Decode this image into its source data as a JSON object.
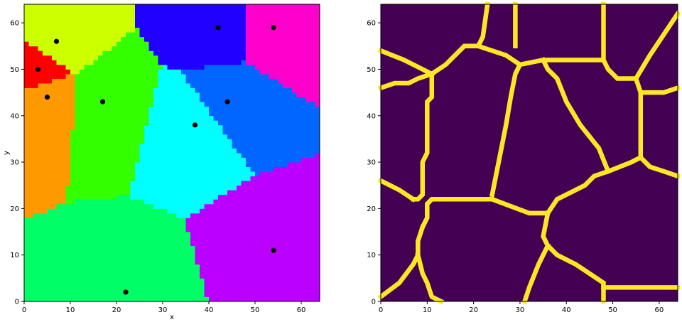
{
  "chart_data": [
    {
      "type": "heatmap",
      "subtype": "voronoi-label-map-with-seed-points",
      "xlabel": "x",
      "ylabel": "y",
      "xlim": [
        0,
        64
      ],
      "ylim": [
        0,
        64
      ],
      "xticks": [
        "0",
        "10",
        "20",
        "30",
        "40",
        "50",
        "60"
      ],
      "yticks": [
        "0",
        "10",
        "20",
        "30",
        "40",
        "50",
        "60"
      ],
      "grid": false,
      "seed_points": [
        {
          "x": 7,
          "y": 56,
          "region_color": "#ccff00"
        },
        {
          "x": 3,
          "y": 50,
          "region_color": "#ff0000"
        },
        {
          "x": 5,
          "y": 44,
          "region_color": "#ff9900"
        },
        {
          "x": 17,
          "y": 43,
          "region_color": "#33ff00"
        },
        {
          "x": 42,
          "y": 59,
          "region_color": "#2200ff"
        },
        {
          "x": 54,
          "y": 59,
          "region_color": "#ff00cc"
        },
        {
          "x": 44,
          "y": 43,
          "region_color": "#0066ff"
        },
        {
          "x": 37,
          "y": 38,
          "region_color": "#00ffff"
        },
        {
          "x": 54,
          "y": 11,
          "region_color": "#bb00ff"
        },
        {
          "x": 22,
          "y": 2,
          "region_color": "#00ff66"
        }
      ],
      "point_color": "#000000"
    },
    {
      "type": "heatmap",
      "subtype": "voronoi-boundary-mask",
      "xlim": [
        0,
        64
      ],
      "ylim": [
        0,
        64
      ],
      "xticks": [
        "0",
        "10",
        "20",
        "30",
        "40",
        "50",
        "60"
      ],
      "yticks": [
        "0",
        "10",
        "20",
        "30",
        "40",
        "50",
        "60"
      ],
      "grid": false,
      "colormap": {
        "background": "#440154",
        "boundary": "#fde725"
      },
      "boundaries": [
        [
          [
            0,
            54
          ],
          [
            5,
            52
          ],
          [
            11,
            49
          ],
          [
            14,
            51
          ],
          [
            18,
            55
          ],
          [
            21,
            55
          ],
          [
            22,
            57
          ],
          [
            23,
            64
          ]
        ],
        [
          [
            21,
            55
          ],
          [
            27,
            53
          ],
          [
            30,
            51
          ],
          [
            35,
            52
          ],
          [
            48,
            52
          ],
          [
            48,
            64
          ]
        ],
        [
          [
            29,
            55
          ],
          [
            29,
            64
          ]
        ],
        [
          [
            48,
            52
          ],
          [
            49,
            50
          ],
          [
            51,
            48
          ],
          [
            55,
            48
          ],
          [
            58,
            53
          ],
          [
            64,
            62
          ]
        ],
        [
          [
            55,
            48
          ],
          [
            56,
            45
          ],
          [
            61,
            45
          ],
          [
            64,
            46
          ]
        ],
        [
          [
            56,
            45
          ],
          [
            56,
            31
          ],
          [
            58,
            29
          ],
          [
            61,
            28
          ],
          [
            64,
            27
          ]
        ],
        [
          [
            56,
            31
          ],
          [
            54,
            30
          ],
          [
            49,
            28
          ],
          [
            46,
            27
          ],
          [
            44,
            25
          ],
          [
            38,
            22
          ],
          [
            36,
            19
          ],
          [
            32,
            19
          ],
          [
            24,
            22
          ],
          [
            11,
            22
          ],
          [
            10,
            21
          ],
          [
            10,
            18
          ],
          [
            9,
            16
          ]
        ],
        [
          [
            36,
            19
          ],
          [
            35,
            14
          ],
          [
            36,
            12
          ],
          [
            38,
            10
          ],
          [
            42,
            8
          ],
          [
            48,
            4
          ],
          [
            48,
            0
          ]
        ],
        [
          [
            48,
            3
          ],
          [
            64,
            3
          ]
        ],
        [
          [
            36,
            12
          ],
          [
            34,
            8
          ],
          [
            32,
            3
          ],
          [
            31,
            0
          ]
        ],
        [
          [
            11,
            49
          ],
          [
            11,
            44
          ],
          [
            10,
            43
          ],
          [
            10,
            32
          ],
          [
            9,
            30
          ],
          [
            9,
            23
          ],
          [
            8,
            22
          ],
          [
            7,
            22
          ]
        ],
        [
          [
            7,
            22
          ],
          [
            4,
            24
          ],
          [
            0,
            26
          ]
        ],
        [
          [
            9,
            16
          ],
          [
            8,
            13
          ],
          [
            8,
            10
          ],
          [
            7,
            8
          ],
          [
            4,
            4
          ],
          [
            0,
            1
          ]
        ],
        [
          [
            8,
            10
          ],
          [
            9,
            6
          ],
          [
            10,
            4
          ],
          [
            11,
            1
          ],
          [
            13,
            0
          ]
        ],
        [
          [
            0,
            46
          ],
          [
            3,
            47
          ],
          [
            6,
            47
          ],
          [
            8,
            48
          ],
          [
            11,
            49
          ]
        ],
        [
          [
            30,
            51
          ],
          [
            29,
            49
          ],
          [
            28,
            44
          ],
          [
            27,
            38
          ],
          [
            26,
            33
          ],
          [
            25,
            28
          ],
          [
            24,
            23
          ]
        ],
        [
          [
            35,
            52
          ],
          [
            36,
            50
          ],
          [
            38,
            48
          ],
          [
            40,
            43
          ],
          [
            43,
            38
          ],
          [
            47,
            33
          ],
          [
            49,
            28
          ]
        ]
      ]
    }
  ]
}
